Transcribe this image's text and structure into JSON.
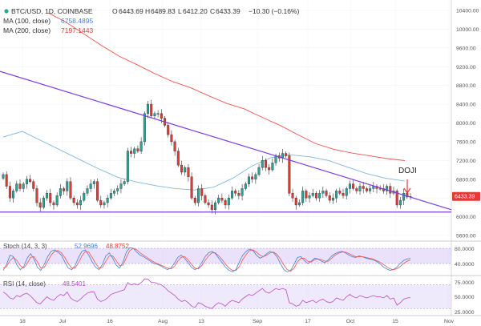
{
  "header": {
    "symbol": "BTC/USD, 1D, COINBASE",
    "ohlc": [
      {
        "key": "O",
        "value": "6443.69"
      },
      {
        "key": "H",
        "value": "6489.83"
      },
      {
        "key": "L",
        "value": "6412.20"
      },
      {
        "key": "C",
        "value": "6433.39"
      }
    ],
    "change": "−10.30 (−0.16%)",
    "ma100_label": "MA (100, close)",
    "ma100_value": "6758.4895",
    "ma200_label": "MA (200, close)",
    "ma200_value": "7197.1443"
  },
  "annotation": {
    "doji": "DOJI"
  },
  "price_tag": "6433.39",
  "colors": {
    "up": "#26a69a",
    "down": "#e53935",
    "ma100": "#80b6e0",
    "ma200": "#ef5350",
    "trendline": "#7b3fe4",
    "stoch_k": "#4a7fd0",
    "stoch_d": "#ef5350",
    "rsi": "#b84bc7",
    "band": "#d8c9f7"
  },
  "stoch": {
    "label": "Stoch (14, 3, 3)",
    "k": "52.9696",
    "d": "48.8752",
    "ticks": [
      "80.0000",
      "40.0000"
    ]
  },
  "rsi": {
    "label": "RSI (14, close)",
    "value": "48.5401",
    "ticks": [
      "75.0000",
      "50.0000",
      "25.0000"
    ]
  },
  "chart_data": {
    "type": "candlestick",
    "symbol": "BTC/USD",
    "timeframe": "1D",
    "y_ticks": [
      5600,
      6000,
      6400,
      6800,
      7200,
      7600,
      8000,
      8400,
      8800,
      9200,
      9600,
      10000,
      10400
    ],
    "ylim": [
      5500,
      10500
    ],
    "x_ticks": [
      "18",
      "Jul",
      "16",
      "Aug",
      "13",
      "Sep",
      "17",
      "Oct",
      "15",
      "Nov"
    ],
    "closes": [
      6900,
      6650,
      6400,
      6550,
      6700,
      6600,
      6700,
      6800,
      6750,
      6600,
      6300,
      6200,
      6400,
      6500,
      6300,
      6250,
      6450,
      6600,
      6550,
      6750,
      6400,
      6300,
      6250,
      6350,
      6500,
      6600,
      6700,
      6750,
      6350,
      6250,
      6300,
      6400,
      6500,
      6550,
      6600,
      6700,
      6750,
      7400,
      7350,
      7450,
      7400,
      7600,
      8200,
      8400,
      8150,
      8200,
      8200,
      8100,
      7950,
      7750,
      7600,
      7400,
      7100,
      6950,
      7050,
      6850,
      6400,
      6300,
      6600,
      6450,
      6300,
      6250,
      6150,
      6300,
      6400,
      6350,
      6250,
      6400,
      6550,
      6500,
      6450,
      6600,
      6700,
      6850,
      6800,
      6900,
      7050,
      7200,
      7050,
      7000,
      7150,
      7300,
      7250,
      7350,
      7300,
      6500,
      6400,
      6250,
      6300,
      6550,
      6400,
      6450,
      6500,
      6400,
      6500,
      6550,
      6450,
      6350,
      6400,
      6550,
      6500,
      6450,
      6600,
      6700,
      6600,
      6550,
      6650,
      6600,
      6550,
      6600,
      6650,
      6600,
      6600,
      6550,
      6650,
      6500,
      6550,
      6250,
      6350,
      6500,
      6420,
      6433
    ],
    "ma100": [
      7700,
      7820,
      7620,
      7420,
      7220,
      7020,
      6840,
      6740,
      6660,
      6600,
      6570,
      6630,
      6820,
      7080,
      7260,
      7320,
      7280,
      7200,
      7060,
      6920,
      6820,
      6760
    ],
    "ma200": [
      10350,
      10150,
      9900,
      9650,
      9420,
      9240,
      9050,
      8880,
      8750,
      8580,
      8420,
      8300,
      8120,
      7950,
      7750,
      7560,
      7440,
      7360,
      7300,
      7240,
      7197
    ],
    "trendline": {
      "from": [
        0,
        9100
      ],
      "to": [
        122,
        6150
      ]
    },
    "support": 6100,
    "stoch_k": [
      22,
      38,
      62,
      58,
      36,
      24,
      32,
      54,
      66,
      52,
      30,
      22,
      38,
      58,
      72,
      76,
      70,
      62,
      44,
      28,
      24,
      34,
      56,
      72,
      76,
      62,
      44,
      30,
      24,
      38,
      60,
      68,
      54,
      36,
      28,
      44,
      70,
      82,
      80,
      70,
      62,
      58,
      52,
      46,
      40,
      38,
      34,
      28,
      24,
      28,
      40,
      56,
      62,
      54,
      42,
      30,
      24,
      28,
      42,
      58,
      68,
      72,
      66,
      54,
      42,
      30,
      22,
      18,
      24,
      44,
      62,
      72,
      78,
      74,
      62,
      54,
      58,
      66,
      72,
      68,
      58,
      40,
      24,
      18,
      22,
      38,
      56,
      58,
      48,
      40,
      46,
      54,
      52,
      46,
      42,
      50,
      60,
      66,
      70,
      72,
      68,
      62,
      58,
      56,
      60,
      58,
      54,
      52,
      50,
      46,
      40,
      32,
      26,
      22,
      24,
      30,
      40,
      48,
      52,
      53
    ],
    "stoch_d": [
      28,
      32,
      48,
      56,
      48,
      34,
      28,
      40,
      56,
      58,
      44,
      28,
      30,
      46,
      62,
      72,
      74,
      68,
      56,
      40,
      28,
      28,
      42,
      60,
      72,
      70,
      56,
      40,
      28,
      30,
      46,
      60,
      60,
      48,
      34,
      36,
      56,
      74,
      80,
      76,
      68,
      62,
      56,
      50,
      44,
      40,
      36,
      32,
      28,
      26,
      32,
      46,
      56,
      58,
      50,
      38,
      28,
      26,
      34,
      48,
      60,
      68,
      68,
      60,
      50,
      38,
      28,
      22,
      22,
      32,
      50,
      64,
      74,
      76,
      70,
      62,
      58,
      62,
      68,
      70,
      64,
      52,
      36,
      24,
      20,
      28,
      44,
      54,
      54,
      46,
      44,
      50,
      52,
      50,
      46,
      46,
      54,
      62,
      67,
      70,
      70,
      66,
      62,
      58,
      58,
      58,
      56,
      54,
      52,
      48,
      44,
      38,
      32,
      26,
      24,
      26,
      32,
      40,
      46,
      49
    ],
    "rsi": [
      58,
      54,
      48,
      46,
      52,
      50,
      54,
      56,
      52,
      46,
      40,
      38,
      44,
      50,
      46,
      44,
      50,
      54,
      52,
      58,
      48,
      44,
      42,
      46,
      52,
      56,
      58,
      58,
      46,
      42,
      44,
      48,
      54,
      56,
      58,
      60,
      62,
      74,
      70,
      72,
      70,
      74,
      80,
      80,
      74,
      74,
      72,
      70,
      66,
      60,
      56,
      52,
      46,
      42,
      44,
      40,
      34,
      32,
      40,
      38,
      34,
      32,
      30,
      36,
      40,
      38,
      34,
      40,
      44,
      42,
      40,
      46,
      50,
      54,
      52,
      56,
      60,
      64,
      58,
      56,
      60,
      64,
      62,
      64,
      62,
      40,
      38,
      34,
      36,
      44,
      40,
      42,
      44,
      40,
      44,
      46,
      42,
      40,
      42,
      48,
      46,
      44,
      50,
      54,
      50,
      48,
      52,
      50,
      48,
      50,
      52,
      50,
      50,
      48,
      52,
      46,
      48,
      36,
      40,
      46,
      48,
      48.5
    ]
  }
}
